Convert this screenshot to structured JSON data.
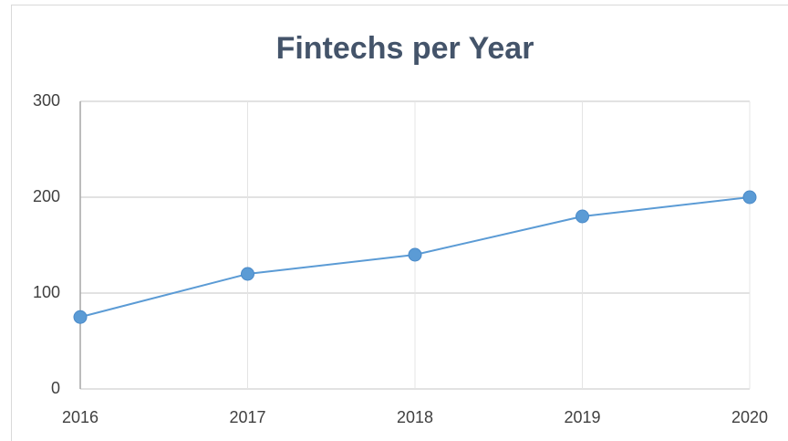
{
  "chart_data": {
    "type": "line",
    "title": "Fintechs per Year",
    "x": [
      2016,
      2017,
      2018,
      2019,
      2020
    ],
    "series": [
      {
        "name": "Fintechs",
        "color": "#5b9bd5",
        "values": [
          75,
          120,
          140,
          180,
          200
        ]
      }
    ],
    "xlim": [
      2016,
      2020
    ],
    "xticks": [
      2016,
      2017,
      2018,
      2019,
      2020
    ],
    "ylim": [
      0,
      300
    ],
    "yticks": [
      0,
      100,
      200,
      300
    ],
    "grid": true
  }
}
